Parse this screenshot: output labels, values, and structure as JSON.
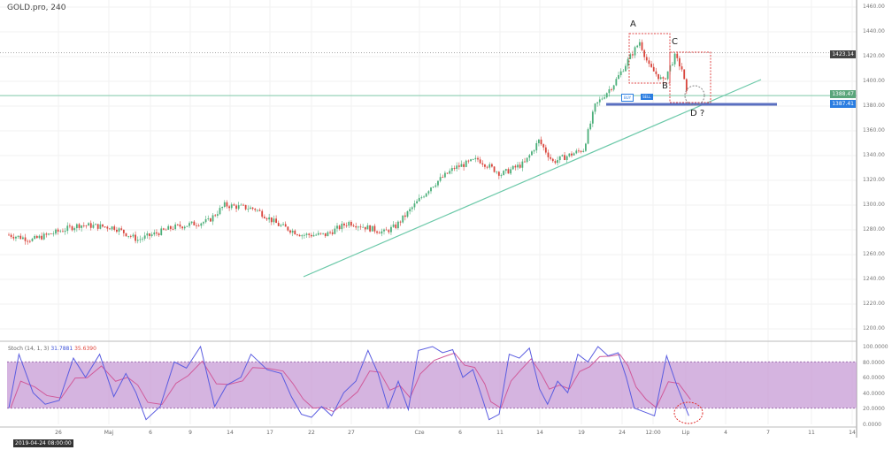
{
  "header": {
    "title": "GOLD.pro, 240"
  },
  "stoch": {
    "label": "Stoch (14, 1, 3)",
    "k": "31.7881",
    "d": "35.6390",
    "k_points": [
      [
        0,
        20
      ],
      [
        5,
        90
      ],
      [
        12,
        40
      ],
      [
        18,
        25
      ],
      [
        25,
        30
      ],
      [
        32,
        85
      ],
      [
        38,
        60
      ],
      [
        45,
        90
      ],
      [
        52,
        35
      ],
      [
        58,
        65
      ],
      [
        63,
        40
      ],
      [
        68,
        5
      ],
      [
        75,
        22
      ],
      [
        82,
        80
      ],
      [
        88,
        72
      ],
      [
        95,
        100
      ],
      [
        102,
        22
      ],
      [
        108,
        50
      ],
      [
        115,
        60
      ],
      [
        120,
        90
      ],
      [
        128,
        70
      ],
      [
        135,
        65
      ],
      [
        140,
        35
      ],
      [
        145,
        12
      ],
      [
        150,
        8
      ],
      [
        155,
        22
      ],
      [
        160,
        10
      ],
      [
        166,
        40
      ],
      [
        172,
        55
      ],
      [
        178,
        95
      ],
      [
        183,
        65
      ],
      [
        188,
        20
      ],
      [
        193,
        55
      ],
      [
        198,
        18
      ],
      [
        203,
        95
      ],
      [
        210,
        100
      ],
      [
        215,
        92
      ],
      [
        220,
        96
      ],
      [
        225,
        60
      ],
      [
        230,
        70
      ],
      [
        235,
        30
      ],
      [
        238,
        5
      ],
      [
        243,
        12
      ],
      [
        248,
        90
      ],
      [
        253,
        85
      ],
      [
        258,
        98
      ],
      [
        263,
        45
      ],
      [
        267,
        25
      ],
      [
        272,
        55
      ],
      [
        277,
        40
      ],
      [
        282,
        90
      ],
      [
        287,
        80
      ],
      [
        292,
        100
      ],
      [
        297,
        88
      ],
      [
        302,
        92
      ],
      [
        306,
        60
      ],
      [
        310,
        20
      ],
      [
        315,
        15
      ],
      [
        320,
        10
      ],
      [
        326,
        88
      ],
      [
        331,
        50
      ],
      [
        337,
        10
      ]
    ],
    "levels": [
      "100.0000",
      "80.0000",
      "60.0000",
      "40.0000",
      "20.0000",
      "0.0000"
    ]
  },
  "price": {
    "axis": [
      "1460.00",
      "1440.00",
      "1420.00",
      "1400.00",
      "1380.00",
      "1360.00",
      "1340.00",
      "1320.00",
      "1300.00",
      "1280.00",
      "1260.00",
      "1240.00",
      "1220.00",
      "1200.00"
    ],
    "axis_values": [
      1460,
      1440,
      1420,
      1400,
      1380,
      1360,
      1340,
      1320,
      1300,
      1280,
      1260,
      1240,
      1220,
      1200
    ],
    "last": "1423.14",
    "bid": "1388.47",
    "ask": "1387.41",
    "buy": "BUY",
    "sell": "SELL",
    "key_points": [
      [
        0,
        1276
      ],
      [
        10,
        1272
      ],
      [
        20,
        1278
      ],
      [
        30,
        1284
      ],
      [
        45,
        1282
      ],
      [
        55,
        1272
      ],
      [
        70,
        1282
      ],
      [
        85,
        1287
      ],
      [
        92,
        1300
      ],
      [
        105,
        1297
      ],
      [
        115,
        1284
      ],
      [
        125,
        1276
      ],
      [
        135,
        1276
      ],
      [
        145,
        1286
      ],
      [
        160,
        1278
      ],
      [
        165,
        1283
      ],
      [
        180,
        1315
      ],
      [
        190,
        1330
      ],
      [
        200,
        1337
      ],
      [
        210,
        1325
      ],
      [
        220,
        1334
      ],
      [
        226,
        1352
      ],
      [
        232,
        1335
      ],
      [
        245,
        1345
      ],
      [
        250,
        1380
      ],
      [
        258,
        1398
      ],
      [
        265,
        1420
      ],
      [
        269,
        1432
      ],
      [
        273,
        1412
      ],
      [
        279,
        1400
      ],
      [
        284,
        1420
      ],
      [
        287,
        1410
      ],
      [
        289,
        1390
      ]
    ]
  },
  "annotations": {
    "a": "A",
    "b": "B",
    "c": "C",
    "d": "D ?"
  },
  "xaxis": {
    "badge": "2019-04-24 08:00:00",
    "labels": [
      "26",
      "Maj",
      "6",
      "9",
      "14",
      "17",
      "22",
      "27",
      "Cze",
      "6",
      "11",
      "14",
      "19",
      "24",
      "12:00",
      "Lip",
      "4",
      "7",
      "11",
      "14"
    ]
  },
  "colors": {
    "up": "#4caf7a",
    "down": "#d9453c",
    "stochK": "#5a5ce0",
    "stochD": "#d05a9a",
    "band": "#c79bd6"
  }
}
